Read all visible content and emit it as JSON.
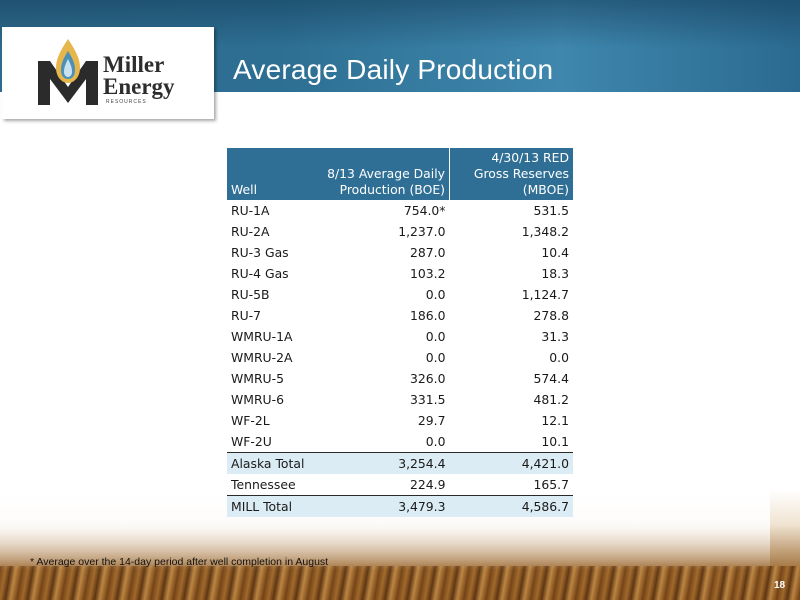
{
  "slide": {
    "title": "Average Daily Production",
    "page_number": "18",
    "footnote": "* Average over the 14-day period after well completion in August"
  },
  "logo": {
    "line1": "Miller",
    "line2": "Energy",
    "sub": "RESOURCES"
  },
  "table": {
    "headers": {
      "well": "Well",
      "production": "8/13 Average Daily Production (BOE)",
      "reserves": "4/30/13 RED Gross Reserves (MBOE)"
    },
    "rows": [
      {
        "well": "RU-1A",
        "production": "754.0*",
        "reserves": "531.5"
      },
      {
        "well": "RU-2A",
        "production": "1,237.0",
        "reserves": "1,348.2"
      },
      {
        "well": "RU-3 Gas",
        "production": "287.0",
        "reserves": "10.4"
      },
      {
        "well": "RU-4 Gas",
        "production": "103.2",
        "reserves": "18.3"
      },
      {
        "well": "RU-5B",
        "production": "0.0",
        "reserves": "1,124.7"
      },
      {
        "well": "RU-7",
        "production": "186.0",
        "reserves": "278.8"
      },
      {
        "well": "WMRU-1A",
        "production": "0.0",
        "reserves": "31.3"
      },
      {
        "well": "WMRU-2A",
        "production": "0.0",
        "reserves": "0.0"
      },
      {
        "well": "WMRU-5",
        "production": "326.0",
        "reserves": "574.4"
      },
      {
        "well": "WMRU-6",
        "production": "331.5",
        "reserves": "481.2"
      },
      {
        "well": "WF-2L",
        "production": "29.7",
        "reserves": "12.1"
      },
      {
        "well": "WF-2U",
        "production": "0.0",
        "reserves": "10.1"
      }
    ],
    "alaska_total": {
      "well": "Alaska Total",
      "production": "3,254.4",
      "reserves": "4,421.0"
    },
    "tennessee": {
      "well": "Tennessee",
      "production": "224.9",
      "reserves": "165.7"
    },
    "mill_total": {
      "well": "MILL Total",
      "production": "3,479.3",
      "reserves": "4,586.7"
    }
  },
  "colors": {
    "header_blue": "#2f6f95",
    "total_row": "#dcecf4"
  }
}
